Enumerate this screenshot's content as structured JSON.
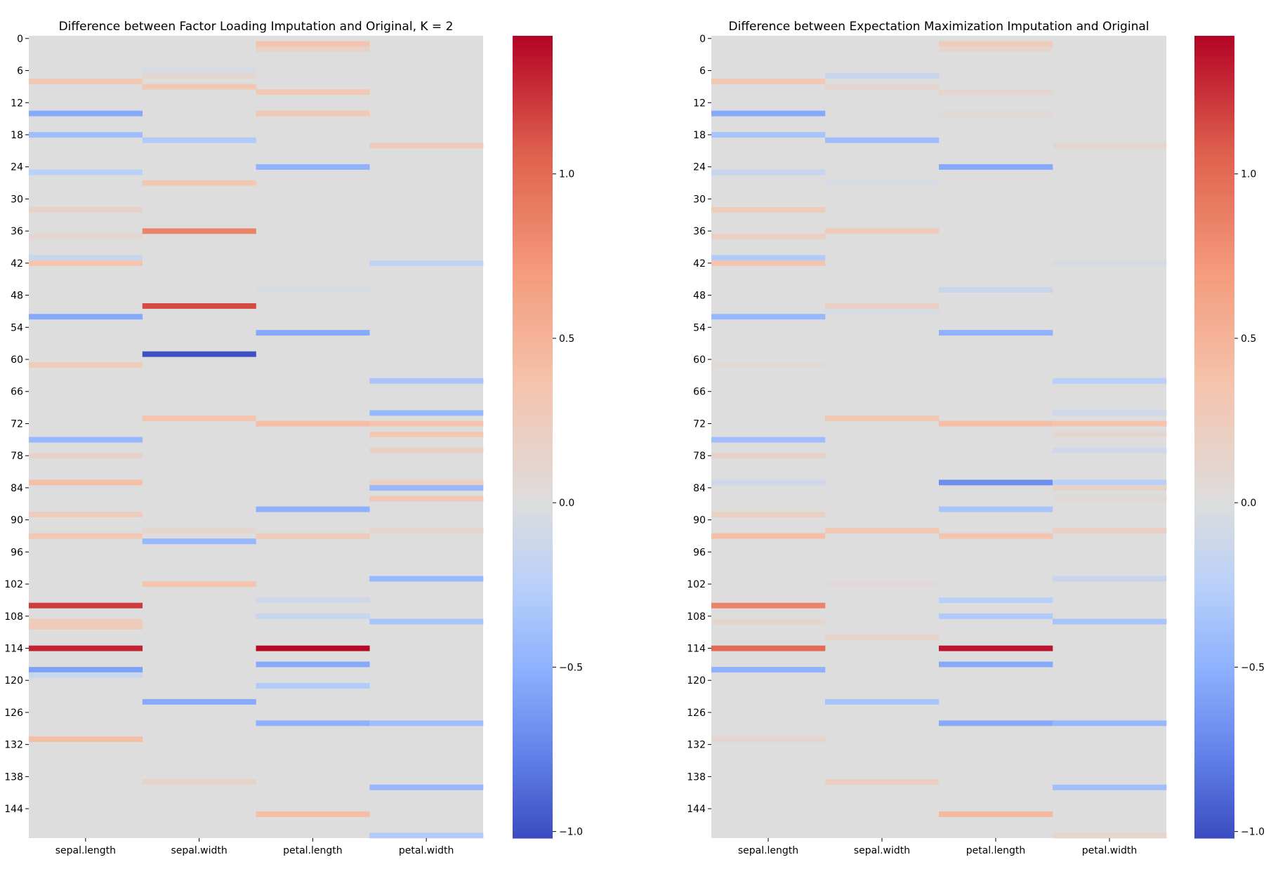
{
  "chart_data": [
    {
      "type": "heatmap",
      "title": "Difference between Factor Loading Imputation and Original, K = 2",
      "columns": [
        "sepal.length",
        "sepal.width",
        "petal.length",
        "petal.width"
      ],
      "row_count": 150,
      "ytick_labels": [
        "0",
        "6",
        "12",
        "18",
        "24",
        "30",
        "36",
        "42",
        "48",
        "54",
        "60",
        "66",
        "72",
        "78",
        "84",
        "90",
        "96",
        "102",
        "108",
        "114",
        "120",
        "126",
        "132",
        "138",
        "144"
      ],
      "cells": [
        {
          "row": 8,
          "col": 0,
          "value": 0.3
        },
        {
          "row": 14,
          "col": 0,
          "value": -0.55
        },
        {
          "row": 18,
          "col": 0,
          "value": -0.4
        },
        {
          "row": 25,
          "col": 0,
          "value": -0.25
        },
        {
          "row": 32,
          "col": 0,
          "value": 0.15
        },
        {
          "row": 37,
          "col": 0,
          "value": 0.1
        },
        {
          "row": 41,
          "col": 0,
          "value": -0.15
        },
        {
          "row": 42,
          "col": 0,
          "value": 0.35
        },
        {
          "row": 52,
          "col": 0,
          "value": -0.55
        },
        {
          "row": 61,
          "col": 0,
          "value": 0.25
        },
        {
          "row": 75,
          "col": 0,
          "value": -0.45
        },
        {
          "row": 78,
          "col": 0,
          "value": 0.15
        },
        {
          "row": 83,
          "col": 0,
          "value": 0.4
        },
        {
          "row": 89,
          "col": 0,
          "value": 0.25
        },
        {
          "row": 93,
          "col": 0,
          "value": 0.3
        },
        {
          "row": 106,
          "col": 0,
          "value": 1.2
        },
        {
          "row": 109,
          "col": 0,
          "value": 0.25
        },
        {
          "row": 110,
          "col": 0,
          "value": 0.25
        },
        {
          "row": 114,
          "col": 0,
          "value": 1.3
        },
        {
          "row": 118,
          "col": 0,
          "value": -0.6
        },
        {
          "row": 119,
          "col": 0,
          "value": -0.15
        },
        {
          "row": 131,
          "col": 0,
          "value": 0.4
        },
        {
          "row": 6,
          "col": 1,
          "value": -0.05
        },
        {
          "row": 7,
          "col": 1,
          "value": 0.1
        },
        {
          "row": 9,
          "col": 1,
          "value": 0.3
        },
        {
          "row": 19,
          "col": 1,
          "value": -0.3
        },
        {
          "row": 27,
          "col": 1,
          "value": 0.3
        },
        {
          "row": 36,
          "col": 1,
          "value": 0.85
        },
        {
          "row": 50,
          "col": 1,
          "value": 1.15
        },
        {
          "row": 59,
          "col": 1,
          "value": -1.0
        },
        {
          "row": 71,
          "col": 1,
          "value": 0.35
        },
        {
          "row": 92,
          "col": 1,
          "value": 0.1
        },
        {
          "row": 94,
          "col": 1,
          "value": -0.45
        },
        {
          "row": 102,
          "col": 1,
          "value": 0.35
        },
        {
          "row": 124,
          "col": 1,
          "value": -0.55
        },
        {
          "row": 139,
          "col": 1,
          "value": 0.15
        },
        {
          "row": 1,
          "col": 2,
          "value": 0.35
        },
        {
          "row": 2,
          "col": 2,
          "value": 0.15
        },
        {
          "row": 10,
          "col": 2,
          "value": 0.3
        },
        {
          "row": 14,
          "col": 2,
          "value": 0.3
        },
        {
          "row": 24,
          "col": 2,
          "value": -0.5
        },
        {
          "row": 47,
          "col": 2,
          "value": -0.05
        },
        {
          "row": 55,
          "col": 2,
          "value": -0.55
        },
        {
          "row": 72,
          "col": 2,
          "value": 0.4
        },
        {
          "row": 88,
          "col": 2,
          "value": -0.5
        },
        {
          "row": 93,
          "col": 2,
          "value": 0.25
        },
        {
          "row": 105,
          "col": 2,
          "value": -0.1
        },
        {
          "row": 108,
          "col": 2,
          "value": -0.15
        },
        {
          "row": 114,
          "col": 2,
          "value": 1.4
        },
        {
          "row": 117,
          "col": 2,
          "value": -0.55
        },
        {
          "row": 121,
          "col": 2,
          "value": -0.3
        },
        {
          "row": 128,
          "col": 2,
          "value": -0.5
        },
        {
          "row": 145,
          "col": 2,
          "value": 0.4
        },
        {
          "row": 20,
          "col": 3,
          "value": 0.25
        },
        {
          "row": 42,
          "col": 3,
          "value": -0.2
        },
        {
          "row": 64,
          "col": 3,
          "value": -0.35
        },
        {
          "row": 70,
          "col": 3,
          "value": -0.45
        },
        {
          "row": 72,
          "col": 3,
          "value": 0.35
        },
        {
          "row": 74,
          "col": 3,
          "value": 0.3
        },
        {
          "row": 77,
          "col": 3,
          "value": 0.2
        },
        {
          "row": 83,
          "col": 3,
          "value": 0.2
        },
        {
          "row": 84,
          "col": 3,
          "value": -0.45
        },
        {
          "row": 86,
          "col": 3,
          "value": 0.3
        },
        {
          "row": 92,
          "col": 3,
          "value": 0.1
        },
        {
          "row": 101,
          "col": 3,
          "value": -0.45
        },
        {
          "row": 109,
          "col": 3,
          "value": -0.35
        },
        {
          "row": 128,
          "col": 3,
          "value": -0.4
        },
        {
          "row": 140,
          "col": 3,
          "value": -0.45
        },
        {
          "row": 149,
          "col": 3,
          "value": -0.3
        }
      ],
      "colorbar": {
        "vmin": -1.02,
        "vmax": 1.42,
        "tick_values": [
          1.0,
          0.5,
          0.0,
          -0.5,
          -1.0
        ],
        "tick_labels": [
          "1.0",
          "0.5",
          "0.0",
          "−0.5",
          "−1.0"
        ]
      },
      "colormap": "coolwarm"
    },
    {
      "type": "heatmap",
      "title": "Difference between Expectation Maximization Imputation and Original",
      "columns": [
        "sepal.length",
        "sepal.width",
        "petal.length",
        "petal.width"
      ],
      "row_count": 150,
      "ytick_labels": [
        "0",
        "6",
        "12",
        "18",
        "24",
        "30",
        "36",
        "42",
        "48",
        "54",
        "60",
        "66",
        "72",
        "78",
        "84",
        "90",
        "96",
        "102",
        "108",
        "114",
        "120",
        "126",
        "132",
        "138",
        "144"
      ],
      "cells": [
        {
          "row": 8,
          "col": 0,
          "value": 0.3
        },
        {
          "row": 14,
          "col": 0,
          "value": -0.55
        },
        {
          "row": 18,
          "col": 0,
          "value": -0.35
        },
        {
          "row": 25,
          "col": 0,
          "value": -0.15
        },
        {
          "row": 32,
          "col": 0,
          "value": 0.25
        },
        {
          "row": 37,
          "col": 0,
          "value": 0.2
        },
        {
          "row": 41,
          "col": 0,
          "value": -0.3
        },
        {
          "row": 42,
          "col": 0,
          "value": 0.35
        },
        {
          "row": 52,
          "col": 0,
          "value": -0.45
        },
        {
          "row": 61,
          "col": 0,
          "value": 0.05
        },
        {
          "row": 75,
          "col": 0,
          "value": -0.4
        },
        {
          "row": 78,
          "col": 0,
          "value": 0.15
        },
        {
          "row": 83,
          "col": 0,
          "value": -0.1
        },
        {
          "row": 89,
          "col": 0,
          "value": 0.2
        },
        {
          "row": 93,
          "col": 0,
          "value": 0.4
        },
        {
          "row": 106,
          "col": 0,
          "value": 0.85
        },
        {
          "row": 109,
          "col": 0,
          "value": 0.1
        },
        {
          "row": 114,
          "col": 0,
          "value": 1.0
        },
        {
          "row": 118,
          "col": 0,
          "value": -0.5
        },
        {
          "row": 131,
          "col": 0,
          "value": 0.1
        },
        {
          "row": 7,
          "col": 1,
          "value": -0.15
        },
        {
          "row": 9,
          "col": 1,
          "value": 0.1
        },
        {
          "row": 19,
          "col": 1,
          "value": -0.4
        },
        {
          "row": 27,
          "col": 1,
          "value": -0.05
        },
        {
          "row": 36,
          "col": 1,
          "value": 0.25
        },
        {
          "row": 50,
          "col": 1,
          "value": 0.2
        },
        {
          "row": 51,
          "col": 1,
          "value": -0.05
        },
        {
          "row": 71,
          "col": 1,
          "value": 0.3
        },
        {
          "row": 92,
          "col": 1,
          "value": 0.3
        },
        {
          "row": 102,
          "col": 1,
          "value": 0.05
        },
        {
          "row": 112,
          "col": 1,
          "value": 0.15
        },
        {
          "row": 124,
          "col": 1,
          "value": -0.35
        },
        {
          "row": 139,
          "col": 1,
          "value": 0.2
        },
        {
          "row": 1,
          "col": 2,
          "value": 0.25
        },
        {
          "row": 2,
          "col": 2,
          "value": 0.1
        },
        {
          "row": 10,
          "col": 2,
          "value": 0.1
        },
        {
          "row": 14,
          "col": 2,
          "value": 0.05
        },
        {
          "row": 24,
          "col": 2,
          "value": -0.55
        },
        {
          "row": 47,
          "col": 2,
          "value": -0.15
        },
        {
          "row": 55,
          "col": 2,
          "value": -0.5
        },
        {
          "row": 72,
          "col": 2,
          "value": 0.4
        },
        {
          "row": 83,
          "col": 2,
          "value": -0.7
        },
        {
          "row": 88,
          "col": 2,
          "value": -0.35
        },
        {
          "row": 93,
          "col": 2,
          "value": 0.35
        },
        {
          "row": 105,
          "col": 2,
          "value": -0.25
        },
        {
          "row": 108,
          "col": 2,
          "value": -0.3
        },
        {
          "row": 114,
          "col": 2,
          "value": 1.35
        },
        {
          "row": 117,
          "col": 2,
          "value": -0.55
        },
        {
          "row": 128,
          "col": 2,
          "value": -0.55
        },
        {
          "row": 145,
          "col": 2,
          "value": 0.45
        },
        {
          "row": 20,
          "col": 3,
          "value": 0.1
        },
        {
          "row": 42,
          "col": 3,
          "value": -0.05
        },
        {
          "row": 64,
          "col": 3,
          "value": -0.25
        },
        {
          "row": 70,
          "col": 3,
          "value": -0.1
        },
        {
          "row": 72,
          "col": 3,
          "value": 0.35
        },
        {
          "row": 74,
          "col": 3,
          "value": 0.1
        },
        {
          "row": 77,
          "col": 3,
          "value": -0.1
        },
        {
          "row": 83,
          "col": 3,
          "value": -0.25
        },
        {
          "row": 84,
          "col": 3,
          "value": 0.15
        },
        {
          "row": 86,
          "col": 3,
          "value": 0.05
        },
        {
          "row": 92,
          "col": 3,
          "value": 0.2
        },
        {
          "row": 101,
          "col": 3,
          "value": -0.15
        },
        {
          "row": 109,
          "col": 3,
          "value": -0.35
        },
        {
          "row": 128,
          "col": 3,
          "value": -0.45
        },
        {
          "row": 140,
          "col": 3,
          "value": -0.4
        },
        {
          "row": 149,
          "col": 3,
          "value": 0.1
        }
      ],
      "colorbar": {
        "vmin": -1.02,
        "vmax": 1.42,
        "tick_values": [
          1.0,
          0.5,
          0.0,
          -0.5,
          -1.0
        ],
        "tick_labels": [
          "1.0",
          "0.5",
          "0.0",
          "−0.5",
          "−1.0"
        ]
      },
      "colormap": "coolwarm"
    }
  ]
}
